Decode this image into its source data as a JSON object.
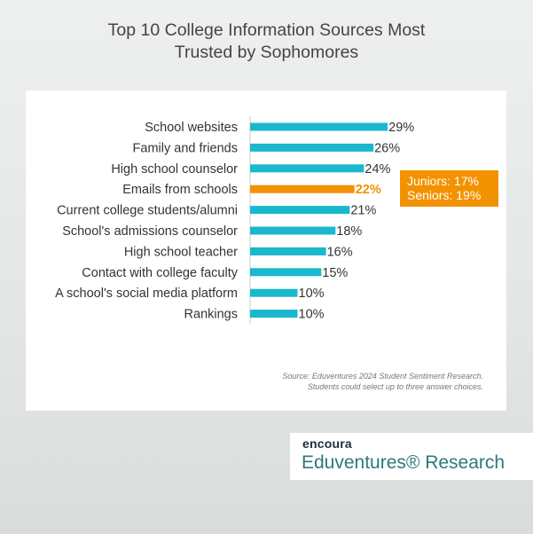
{
  "title": {
    "line1": "Top 10 College Information Sources Most",
    "line2": "Trusted by Sophomores"
  },
  "chart_data": {
    "type": "bar",
    "orientation": "horizontal",
    "categories": [
      "School websites",
      "Family and friends",
      "High school counselor",
      "Emails from schools",
      "Current college students/alumni",
      "School's admissions counselor",
      "High school teacher",
      "Contact with college faculty",
      "A school's social media platform",
      "Rankings"
    ],
    "values": [
      29,
      26,
      24,
      22,
      21,
      18,
      16,
      15,
      10,
      10
    ],
    "value_labels": [
      "29%",
      "26%",
      "24%",
      "22%",
      "21%",
      "18%",
      "16%",
      "15%",
      "10%",
      "10%"
    ],
    "highlight_index": 3,
    "xlim": [
      0,
      100
    ],
    "grid": false,
    "colors": {
      "bar": "#1ab8cc",
      "highlight": "#f39200",
      "text": "#333333",
      "axis": "#cccccc"
    }
  },
  "callout": {
    "line1": "Juniors: 17%",
    "line2": "Seniors: 19%"
  },
  "source": {
    "line1": "Source: Eduventures 2024 Student Sentiment Research.",
    "line2": "Students could select up to three answer choices."
  },
  "logo": {
    "mark": "encoura",
    "name": "Eduventures® Research"
  }
}
